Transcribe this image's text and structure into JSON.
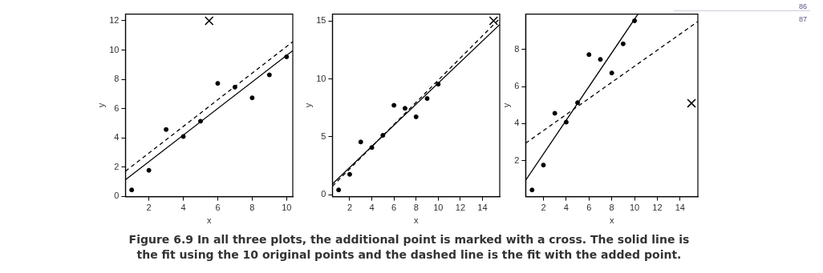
{
  "chart_data": [
    {
      "type": "scatter",
      "xlabel": "x",
      "ylabel": "y",
      "xlim": [
        0.64,
        10.36
      ],
      "ylim": [
        -0.03,
        12.46
      ],
      "xticks": [
        2,
        4,
        6,
        8,
        10
      ],
      "yticks": [
        0,
        2,
        4,
        6,
        8,
        10,
        12
      ],
      "grid": false,
      "series": [
        {
          "type": "scatter",
          "marker": "circle",
          "color": "#000000",
          "x": [
            1,
            2,
            3,
            4,
            5,
            6,
            7,
            8,
            9,
            10
          ],
          "values": [
            0.43,
            1.77,
            4.56,
            4.08,
            5.13,
            7.72,
            7.46,
            6.73,
            8.3,
            9.54
          ]
        },
        {
          "type": "scatter",
          "marker": "cross",
          "color": "#000000",
          "x": [
            5.5
          ],
          "values": [
            12
          ]
        },
        {
          "type": "line",
          "line_style": "solid",
          "color": "#000000",
          "x": [
            0.64,
            10.36
          ],
          "values": [
            1.13,
            9.96
          ]
        },
        {
          "type": "line",
          "line_style": "dashed",
          "color": "#000000",
          "x": [
            0.64,
            10.36
          ],
          "values": [
            1.71,
            10.57
          ]
        }
      ]
    },
    {
      "type": "scatter",
      "xlabel": "x",
      "ylabel": "y",
      "xlim": [
        0.44,
        15.56
      ],
      "ylim": [
        -0.15,
        15.58
      ],
      "xticks": [
        2,
        4,
        6,
        8,
        10,
        12,
        14
      ],
      "yticks": [
        0,
        5,
        10,
        15
      ],
      "grid": false,
      "annotations": [
        "Figure 6.9 In all three plots, the additional point is marked with a cross. The solid line is the fit using the 10 original points and the dashed line is the fit with the added point."
      ],
      "series": [
        {
          "type": "scatter",
          "marker": "circle",
          "color": "#000000",
          "x": [
            1,
            2,
            3,
            4,
            5,
            6,
            7,
            8,
            9,
            10
          ],
          "values": [
            0.43,
            1.77,
            4.56,
            4.08,
            5.13,
            7.72,
            7.46,
            6.73,
            8.3,
            9.54
          ]
        },
        {
          "type": "scatter",
          "marker": "cross",
          "color": "#000000",
          "x": [
            15
          ],
          "values": [
            15
          ]
        },
        {
          "type": "line",
          "line_style": "solid",
          "color": "#000000",
          "x": [
            0.44,
            15.56
          ],
          "values": [
            0.95,
            14.68
          ]
        },
        {
          "type": "line",
          "line_style": "dashed",
          "color": "#000000",
          "x": [
            0.44,
            15.56
          ],
          "values": [
            0.75,
            15.2
          ]
        }
      ]
    },
    {
      "type": "scatter",
      "xlabel": "x",
      "ylabel": "y",
      "xlim": [
        0.44,
        15.56
      ],
      "ylim": [
        0.07,
        9.9
      ],
      "xticks": [
        2,
        4,
        6,
        8,
        10,
        12,
        14
      ],
      "yticks": [
        2,
        4,
        6,
        8
      ],
      "grid": false,
      "annotations": [
        "86",
        "87"
      ],
      "series": [
        {
          "type": "scatter",
          "marker": "circle",
          "color": "#000000",
          "x": [
            1,
            2,
            3,
            4,
            5,
            6,
            7,
            8,
            9,
            10
          ],
          "values": [
            0.43,
            1.77,
            4.56,
            4.08,
            5.13,
            7.72,
            7.46,
            6.73,
            8.3,
            9.54
          ]
        },
        {
          "type": "scatter",
          "marker": "cross",
          "color": "#000000",
          "x": [
            15
          ],
          "values": [
            5.1
          ]
        },
        {
          "type": "line",
          "line_style": "solid",
          "color": "#000000",
          "x": [
            0.44,
            10.3
          ],
          "values": [
            0.95,
            9.9
          ]
        },
        {
          "type": "line",
          "line_style": "dashed",
          "color": "#000000",
          "x": [
            0.44,
            15.56
          ],
          "values": [
            2.95,
            9.5
          ]
        }
      ]
    }
  ]
}
